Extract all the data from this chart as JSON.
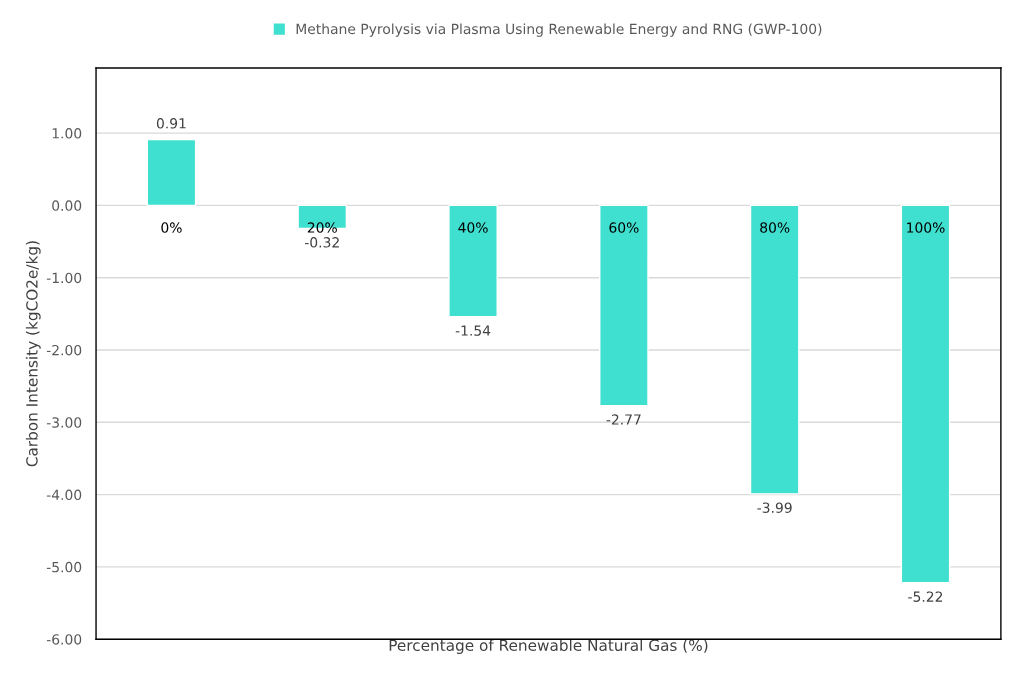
{
  "chart_data": {
    "type": "bar",
    "categories": [
      "0%",
      "20%",
      "40%",
      "60%",
      "80%",
      "100%"
    ],
    "series": [
      {
        "name": "Methane Pyrolysis via Plasma Using Renewable Energy and RNG (GWP-100)",
        "color": "#40e0d0",
        "values": [
          0.91,
          -0.32,
          -1.54,
          -2.77,
          -3.99,
          -5.22
        ]
      }
    ],
    "value_labels": [
      "0.91",
      "-0.32",
      "-1.54",
      "-2.77",
      "-3.99",
      "-5.22"
    ],
    "xlabel": "Percentage of Renewable Natural Gas (%)",
    "ylabel": "Carbon Intensity (kgCO2e/kg)",
    "ylim": [
      -6,
      1.9
    ],
    "yticks": [
      {
        "value": -6,
        "label": "-6.00"
      },
      {
        "value": -5,
        "label": "-5.00"
      },
      {
        "value": -4,
        "label": "-4.00"
      },
      {
        "value": -3,
        "label": "-3.00"
      },
      {
        "value": -2,
        "label": "-2.00"
      },
      {
        "value": -1,
        "label": "-1.00"
      },
      {
        "value": 0,
        "label": "0.00"
      },
      {
        "value": 1,
        "label": "1.00"
      }
    ],
    "grid": "y",
    "legend": "top"
  }
}
